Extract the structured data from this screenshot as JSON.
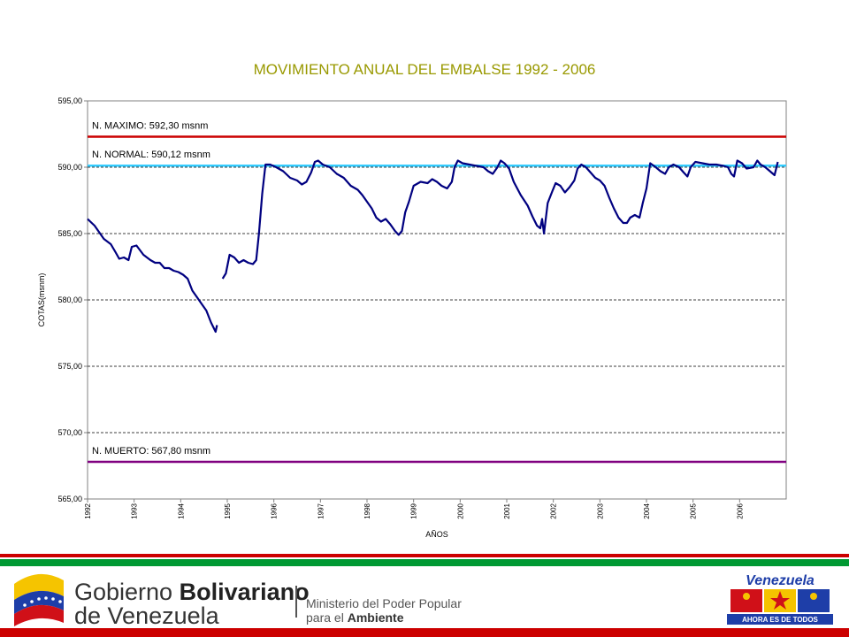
{
  "colors": {
    "series": "#000080",
    "max_line": "#cc0000",
    "normal_line": "#33ccff",
    "dead_line": "#800080",
    "title": "#999900",
    "stripe_red": "#cc0000",
    "stripe_green": "#009933"
  },
  "footer": {
    "gov_name_1": "Gobierno",
    "gov_name_2": "Bolivariano",
    "gov_name_3": "de Venezuela",
    "ministry_1": "Ministerio del Poder Popular",
    "ministry_2": "para el",
    "ministry_3": "Ambiente",
    "venezuela_logo": "Venezuela",
    "venezuela_slogan": "AHORA ES DE TODOS"
  },
  "chart_data": {
    "type": "line",
    "title": "MOVIMIENTO ANUAL DEL EMBALSE 1992 - 2006",
    "xlabel": "AÑOS",
    "ylabel": "COTAS(msnm)",
    "ylim": [
      565,
      595
    ],
    "y_ticks": [
      "565,00",
      "570,00",
      "575,00",
      "580,00",
      "585,00",
      "590,00",
      "595,00"
    ],
    "x_ticks": [
      "1992",
      "1993",
      "1994",
      "1995",
      "1996",
      "1997",
      "1998",
      "1999",
      "2000",
      "2001",
      "2002",
      "2003",
      "2004",
      "2005",
      "2006"
    ],
    "x_tick_years": [
      1992,
      1993,
      1994,
      1995,
      1996,
      1997,
      1998,
      1999,
      2000,
      2001,
      2002,
      2003,
      2004,
      2005,
      2006
    ],
    "xlim": [
      1992,
      2007.0
    ],
    "grid": "horizontal dashed",
    "reference_lines": [
      {
        "label": "N. MAXIMO:  592,30  msnm",
        "value": 592.3,
        "color": "#cc0000"
      },
      {
        "label": "N. NORMAL: 590,12 msnm",
        "value": 590.12,
        "color": "#33ccff"
      },
      {
        "label": "N. MUERTO: 567,80  msnm",
        "value": 567.8,
        "color": "#800080"
      }
    ],
    "series": [
      {
        "segments": [
          [
            [
              1992.0,
              586.1
            ],
            [
              1992.15,
              585.6
            ],
            [
              1992.35,
              584.6
            ],
            [
              1992.5,
              584.2
            ],
            [
              1992.6,
              583.6
            ],
            [
              1992.68,
              583.1
            ],
            [
              1992.78,
              583.2
            ],
            [
              1992.88,
              583.0
            ],
            [
              1992.95,
              584.0
            ],
            [
              1993.05,
              584.1
            ],
            [
              1993.2,
              583.4
            ],
            [
              1993.35,
              583.0
            ],
            [
              1993.45,
              582.8
            ],
            [
              1993.55,
              582.8
            ],
            [
              1993.65,
              582.4
            ],
            [
              1993.75,
              582.4
            ],
            [
              1993.85,
              582.2
            ],
            [
              1993.95,
              582.1
            ],
            [
              1994.05,
              581.9
            ],
            [
              1994.15,
              581.6
            ],
            [
              1994.25,
              580.7
            ],
            [
              1994.35,
              580.2
            ],
            [
              1994.45,
              579.7
            ],
            [
              1994.55,
              579.2
            ],
            [
              1994.65,
              578.3
            ],
            [
              1994.75,
              577.6
            ],
            [
              1994.78,
              578.1
            ]
          ],
          [
            [
              1994.9,
              581.6
            ],
            [
              1994.97,
              582.0
            ],
            [
              1995.05,
              583.4
            ],
            [
              1995.15,
              583.2
            ],
            [
              1995.25,
              582.8
            ],
            [
              1995.35,
              583.0
            ],
            [
              1995.45,
              582.8
            ],
            [
              1995.55,
              582.7
            ],
            [
              1995.62,
              583.0
            ],
            [
              1995.68,
              585.0
            ],
            [
              1995.75,
              588.0
            ],
            [
              1995.82,
              590.2
            ],
            [
              1995.92,
              590.2
            ],
            [
              1996.05,
              590.0
            ],
            [
              1996.2,
              589.7
            ],
            [
              1996.35,
              589.2
            ],
            [
              1996.5,
              589.0
            ],
            [
              1996.6,
              588.7
            ],
            [
              1996.7,
              588.9
            ],
            [
              1996.8,
              589.6
            ],
            [
              1996.88,
              590.4
            ],
            [
              1996.95,
              590.5
            ],
            [
              1997.05,
              590.2
            ],
            [
              1997.2,
              590.0
            ],
            [
              1997.35,
              589.5
            ],
            [
              1997.5,
              589.2
            ],
            [
              1997.65,
              588.6
            ],
            [
              1997.8,
              588.3
            ],
            [
              1997.9,
              587.9
            ],
            [
              1998.0,
              587.4
            ],
            [
              1998.1,
              586.9
            ],
            [
              1998.2,
              586.2
            ],
            [
              1998.3,
              585.9
            ],
            [
              1998.4,
              586.1
            ],
            [
              1998.5,
              585.7
            ],
            [
              1998.6,
              585.2
            ],
            [
              1998.68,
              584.9
            ],
            [
              1998.75,
              585.2
            ],
            [
              1998.82,
              586.6
            ],
            [
              1998.9,
              587.4
            ],
            [
              1999.0,
              588.6
            ],
            [
              1999.15,
              588.9
            ],
            [
              1999.3,
              588.8
            ],
            [
              1999.4,
              589.1
            ],
            [
              1999.5,
              588.9
            ],
            [
              1999.6,
              588.6
            ],
            [
              1999.72,
              588.4
            ],
            [
              1999.82,
              588.9
            ],
            [
              1999.88,
              590.0
            ],
            [
              1999.95,
              590.5
            ],
            [
              2000.05,
              590.3
            ],
            [
              2000.2,
              590.2
            ],
            [
              2000.35,
              590.1
            ],
            [
              2000.5,
              590.0
            ],
            [
              2000.6,
              589.7
            ],
            [
              2000.7,
              589.5
            ],
            [
              2000.8,
              590.0
            ],
            [
              2000.87,
              590.5
            ],
            [
              2000.95,
              590.3
            ],
            [
              2001.05,
              589.9
            ],
            [
              2001.15,
              588.9
            ],
            [
              2001.3,
              587.9
            ],
            [
              2001.45,
              587.1
            ],
            [
              2001.55,
              586.3
            ],
            [
              2001.65,
              585.6
            ],
            [
              2001.72,
              585.4
            ],
            [
              2001.76,
              586.1
            ],
            [
              2001.8,
              585.0
            ],
            [
              2001.88,
              587.3
            ],
            [
              2001.98,
              588.2
            ],
            [
              2002.05,
              588.8
            ],
            [
              2002.15,
              588.6
            ],
            [
              2002.25,
              588.1
            ],
            [
              2002.35,
              588.5
            ],
            [
              2002.45,
              589.0
            ],
            [
              2002.52,
              589.9
            ],
            [
              2002.6,
              590.2
            ],
            [
              2002.7,
              590.0
            ],
            [
              2002.8,
              589.6
            ],
            [
              2002.9,
              589.2
            ],
            [
              2003.0,
              589.0
            ],
            [
              2003.1,
              588.6
            ],
            [
              2003.2,
              587.7
            ],
            [
              2003.3,
              586.9
            ],
            [
              2003.4,
              586.2
            ],
            [
              2003.5,
              585.8
            ],
            [
              2003.58,
              585.8
            ],
            [
              2003.65,
              586.2
            ],
            [
              2003.75,
              586.4
            ],
            [
              2003.85,
              586.2
            ],
            [
              2003.92,
              587.3
            ],
            [
              2004.0,
              588.4
            ],
            [
              2004.08,
              590.3
            ],
            [
              2004.2,
              590.0
            ],
            [
              2004.3,
              589.7
            ],
            [
              2004.4,
              589.5
            ],
            [
              2004.48,
              590.0
            ],
            [
              2004.58,
              590.2
            ],
            [
              2004.7,
              590.0
            ],
            [
              2004.8,
              589.6
            ],
            [
              2004.88,
              589.3
            ],
            [
              2004.95,
              590.0
            ],
            [
              2005.05,
              590.4
            ],
            [
              2005.2,
              590.3
            ],
            [
              2005.35,
              590.2
            ],
            [
              2005.5,
              590.2
            ],
            [
              2005.65,
              590.1
            ],
            [
              2005.75,
              590.0
            ],
            [
              2005.82,
              589.5
            ],
            [
              2005.88,
              589.3
            ],
            [
              2005.95,
              590.5
            ],
            [
              2006.05,
              590.3
            ],
            [
              2006.15,
              589.9
            ],
            [
              2006.3,
              590.0
            ],
            [
              2006.38,
              590.5
            ],
            [
              2006.45,
              590.2
            ],
            [
              2006.55,
              590.0
            ],
            [
              2006.65,
              589.7
            ],
            [
              2006.75,
              589.4
            ],
            [
              2006.82,
              590.4
            ]
          ]
        ]
      }
    ]
  }
}
